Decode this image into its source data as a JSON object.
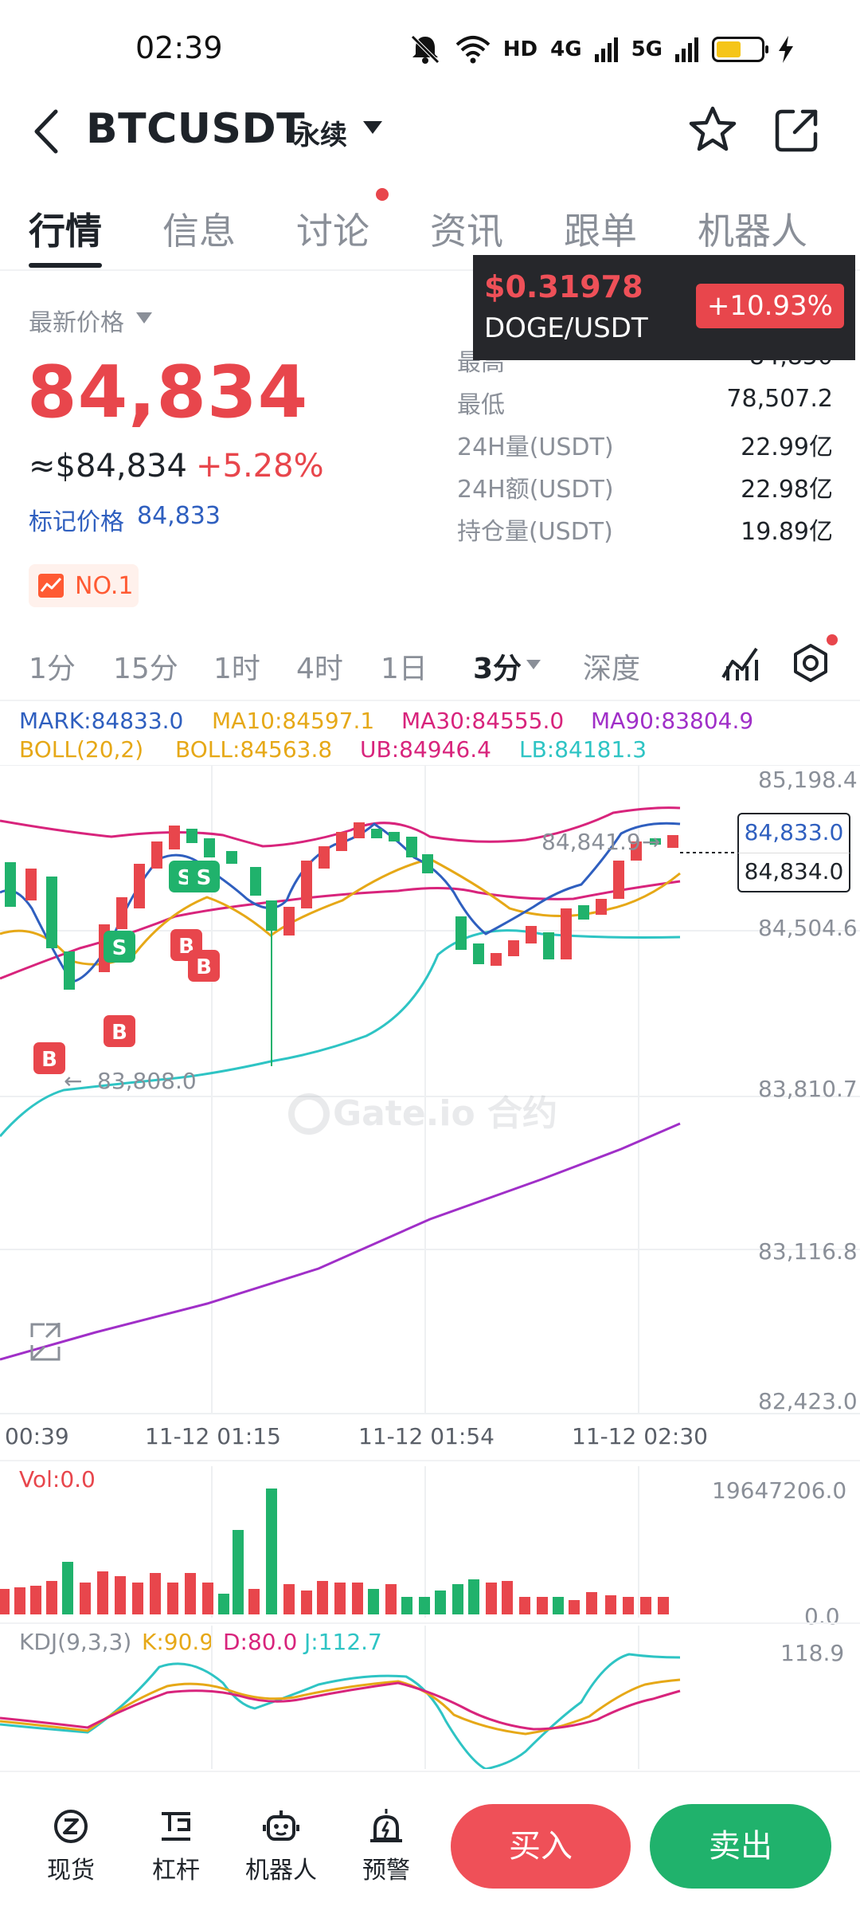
{
  "status_bar": {
    "time": "02:39",
    "network_badges": [
      "HD",
      "4G",
      "5G"
    ]
  },
  "header": {
    "pair": "BTCUSDT",
    "contract_type": "永续"
  },
  "tabs": [
    {
      "label": "行情",
      "active": true
    },
    {
      "label": "信息",
      "active": false
    },
    {
      "label": "讨论",
      "active": false,
      "has_dot": true
    },
    {
      "label": "资讯",
      "active": false
    },
    {
      "label": "跟单",
      "active": false
    },
    {
      "label": "机器人",
      "active": false
    }
  ],
  "price": {
    "label": "最新价格",
    "last": "84,834",
    "usd": "≈$84,834",
    "change_pct": "+5.28%",
    "mark_label": "标记价格",
    "mark_value": "84,833",
    "rank": "NO.1"
  },
  "stats": [
    {
      "label": "最高",
      "value": "84,850"
    },
    {
      "label": "最低",
      "value": "78,507.2"
    },
    {
      "label": "24H量(USDT)",
      "value": "22.99亿"
    },
    {
      "label": "24H额(USDT)",
      "value": "22.98亿"
    },
    {
      "label": "持仓量(USDT)",
      "value": "19.89亿"
    }
  ],
  "ticker_popup": {
    "price": "$0.31978",
    "pair": "DOGE/USDT",
    "change": "+10.93%"
  },
  "intervals": [
    {
      "label": "1分",
      "active": false
    },
    {
      "label": "15分",
      "active": false
    },
    {
      "label": "1时",
      "active": false
    },
    {
      "label": "4时",
      "active": false
    },
    {
      "label": "1日",
      "active": false
    },
    {
      "label": "3分",
      "active": true
    },
    {
      "label": "深度",
      "active": false
    }
  ],
  "legend": {
    "mark": "MARK:84833.0",
    "ma10": "MA10:84597.1",
    "ma30": "MA30:84555.0",
    "ma90": "MA90:83804.9",
    "boll": "BOLL(20,2)",
    "boll_mid": "BOLL:84563.8",
    "ub": "UB:84946.4",
    "lb": "LB:84181.3"
  },
  "chart_data": {
    "type": "candlestick",
    "y_axis_ticks": [
      "85,198.4",
      "84,504.6",
      "83,810.7",
      "83,116.8",
      "82,423.0"
    ],
    "x_axis_ticks": [
      "00:39",
      "11-12 01:15",
      "11-12 01:54",
      "11-12 02:30"
    ],
    "high_annotation": "84,841.9",
    "low_annotation": "83,808.0",
    "current_mark": "84,833.0",
    "current_last": "84,834.0",
    "watermark": "Gate.io 合约",
    "trade_markers": [
      "B",
      "B",
      "S",
      "S",
      "S",
      "B",
      "B"
    ],
    "volume_label": "Vol:0.0",
    "volume_ticks": [
      "19647206.0",
      "0.0"
    ],
    "kdj_label": "KDJ(9,3,3)",
    "kdj_k": "K:90.9",
    "kdj_d": "D:80.0",
    "kdj_j": "J:112.7",
    "kdj_ticks": [
      "118.9"
    ],
    "colors": {
      "up": "#e8464c",
      "down": "#20b26c"
    }
  },
  "bottom_nav": [
    {
      "label": "现货",
      "icon": "spot-icon"
    },
    {
      "label": "杠杆",
      "icon": "margin-icon"
    },
    {
      "label": "机器人",
      "icon": "robot-icon"
    },
    {
      "label": "预警",
      "icon": "alert-icon"
    }
  ],
  "actions": {
    "buy": "买入",
    "sell": "卖出"
  }
}
